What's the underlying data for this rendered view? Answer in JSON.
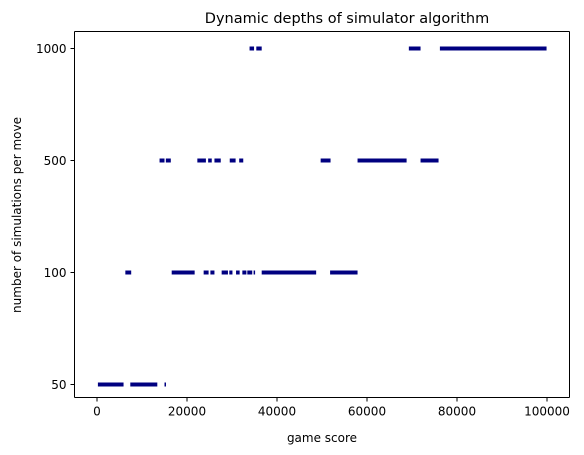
{
  "chart_data": {
    "type": "scatter",
    "title": "Dynamic depths of simulator algorithm",
    "xlabel": "game score",
    "ylabel": "number of simulations per move",
    "xlim": [
      -5000,
      105000
    ],
    "x_ticks": [
      0,
      20000,
      40000,
      60000,
      80000,
      100000
    ],
    "x_tick_labels": [
      "0",
      "20000",
      "40000",
      "60000",
      "80000",
      "100000"
    ],
    "y_scale": "categorical",
    "y_categories": [
      "50",
      "100",
      "500",
      "1000"
    ],
    "grid": false,
    "legend": "none",
    "marker_color": "#000080",
    "series": [
      {
        "level": "1000",
        "segments": [
          [
            33900,
            34900
          ],
          [
            35400,
            36600
          ],
          [
            69300,
            71900
          ],
          [
            76200,
            99900
          ]
        ]
      },
      {
        "level": "500",
        "segments": [
          [
            13900,
            15000
          ],
          [
            15300,
            16400
          ],
          [
            22300,
            24200
          ],
          [
            24700,
            25500
          ],
          [
            26100,
            27500
          ],
          [
            29500,
            30800
          ],
          [
            31600,
            32500
          ],
          [
            49700,
            51900
          ],
          [
            57900,
            68800
          ],
          [
            71900,
            75900
          ]
        ]
      },
      {
        "level": "100",
        "segments": [
          [
            6300,
            7600
          ],
          [
            16600,
            21700
          ],
          [
            23700,
            24800
          ],
          [
            25200,
            26100
          ],
          [
            27700,
            29100
          ],
          [
            29400,
            30100
          ],
          [
            30900,
            31700
          ],
          [
            32300,
            33200
          ],
          [
            33400,
            34500
          ],
          [
            34800,
            35100
          ],
          [
            36600,
            48700
          ],
          [
            51800,
            57900
          ]
        ]
      },
      {
        "level": "50",
        "segments": [
          [
            200,
            5900
          ],
          [
            7400,
            13400
          ],
          [
            15000,
            15200
          ]
        ]
      }
    ]
  }
}
